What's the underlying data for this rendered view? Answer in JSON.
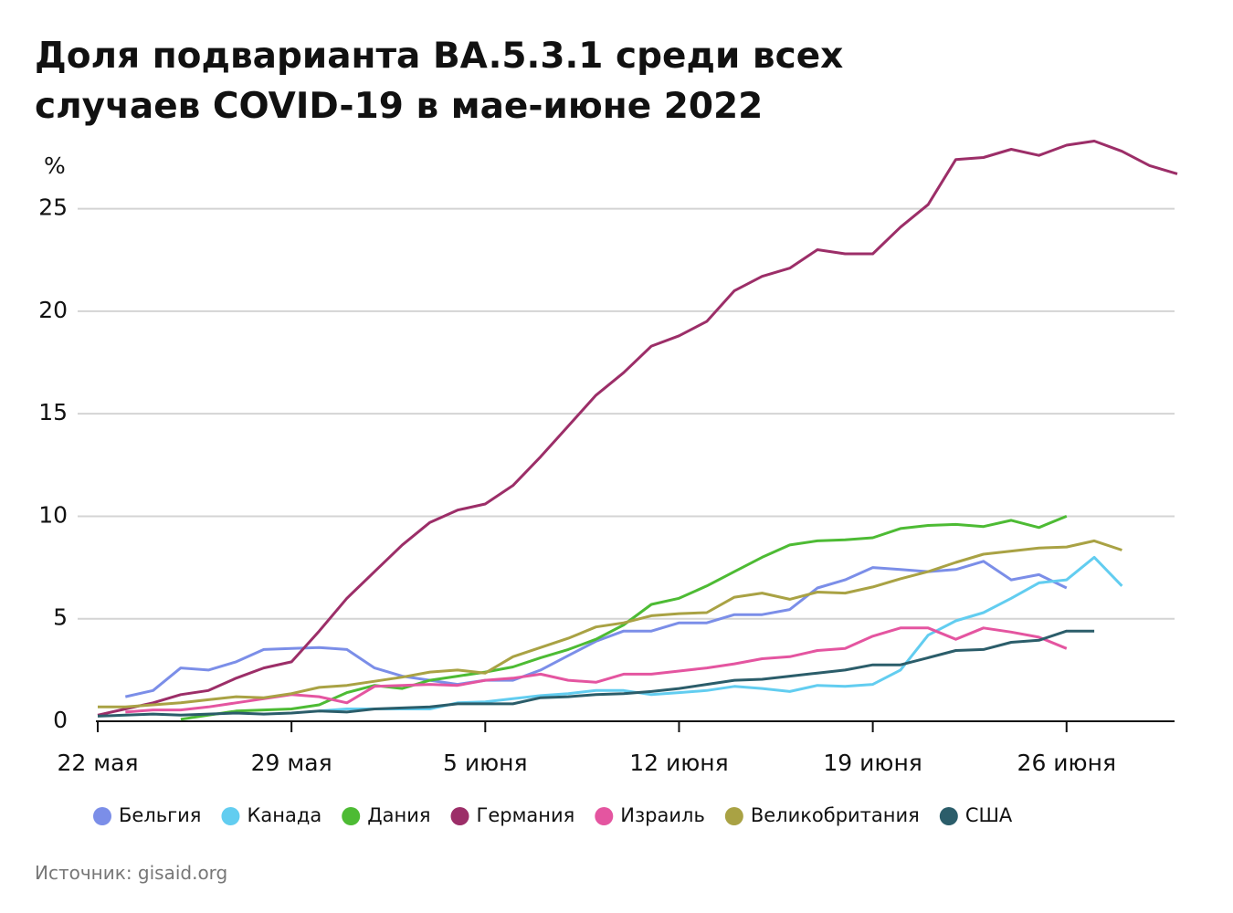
{
  "chart_data": {
    "type": "line",
    "title": "Доля подварианта BA.5.3.1 среди всех случаев COVID-19 в мае-июне 2022",
    "y_label": "%",
    "source": "Источник: gisaid.org",
    "x": [
      "05-22",
      "05-23",
      "05-24",
      "05-25",
      "05-26",
      "05-27",
      "05-28",
      "05-29",
      "05-30",
      "05-31",
      "06-01",
      "06-02",
      "06-03",
      "06-04",
      "06-05",
      "06-06",
      "06-07",
      "06-08",
      "06-09",
      "06-10",
      "06-11",
      "06-12",
      "06-13",
      "06-14",
      "06-15",
      "06-16",
      "06-17",
      "06-18",
      "06-19",
      "06-20",
      "06-21",
      "06-22",
      "06-23",
      "06-24",
      "06-25",
      "06-26",
      "06-27",
      "06-28",
      "06-29",
      "06-30"
    ],
    "xlim": [
      "05-22",
      "06-30"
    ],
    "xticks": [
      {
        "value": "05-22",
        "label": "22 мая"
      },
      {
        "value": "05-29",
        "label": "29 мая"
      },
      {
        "value": "06-05",
        "label": "5 июня"
      },
      {
        "value": "06-12",
        "label": "12 июня"
      },
      {
        "value": "06-19",
        "label": "19 июня"
      },
      {
        "value": "06-26",
        "label": "26 июня"
      }
    ],
    "ylim": [
      0,
      28.5
    ],
    "yticks": [
      0,
      5,
      10,
      15,
      20,
      25
    ],
    "grid": true,
    "series": [
      {
        "name": "Бельгия",
        "color": "#7b8ee8",
        "values": [
          null,
          1.2,
          1.5,
          2.6,
          2.5,
          2.9,
          3.5,
          3.55,
          3.6,
          3.5,
          2.6,
          2.2,
          2.0,
          1.8,
          2.0,
          2.0,
          2.5,
          3.2,
          3.9,
          4.4,
          4.4,
          4.8,
          4.8,
          5.2,
          5.2,
          5.45,
          6.5,
          6.9,
          7.5,
          7.4,
          7.3,
          7.4,
          7.8,
          6.9,
          7.15,
          6.5,
          null,
          null,
          null,
          null
        ]
      },
      {
        "name": "Канада",
        "color": "#62cdf0",
        "values": [
          null,
          null,
          null,
          null,
          null,
          null,
          null,
          null,
          0.5,
          0.6,
          0.6,
          0.6,
          0.6,
          0.9,
          0.95,
          1.1,
          1.25,
          1.35,
          1.5,
          1.5,
          1.3,
          1.4,
          1.5,
          1.7,
          1.6,
          1.45,
          1.75,
          1.7,
          1.8,
          2.5,
          4.2,
          4.9,
          5.3,
          6.0,
          6.75,
          6.9,
          8.0,
          6.6,
          null,
          null
        ]
      },
      {
        "name": "Дания",
        "color": "#4dbb34",
        "values": [
          null,
          null,
          null,
          0.1,
          0.3,
          0.5,
          0.55,
          0.6,
          0.8,
          1.4,
          1.75,
          1.6,
          2.0,
          2.2,
          2.4,
          2.65,
          3.1,
          3.5,
          4.0,
          4.7,
          5.7,
          6.0,
          6.6,
          7.3,
          8.0,
          8.6,
          8.8,
          8.85,
          8.95,
          9.4,
          9.55,
          9.6,
          9.5,
          9.8,
          9.45,
          10.0,
          null,
          null,
          null,
          null
        ]
      },
      {
        "name": "Германия",
        "color": "#9c2e68",
        "values": [
          0.3,
          0.6,
          0.9,
          1.3,
          1.5,
          2.1,
          2.6,
          2.9,
          4.4,
          6.0,
          7.3,
          8.6,
          9.7,
          10.3,
          10.6,
          11.5,
          12.9,
          14.4,
          15.9,
          17.0,
          18.3,
          18.8,
          19.5,
          21.0,
          21.7,
          22.1,
          23.0,
          22.8,
          22.8,
          24.1,
          25.2,
          27.4,
          27.5,
          27.9,
          27.6,
          28.1,
          28.3,
          27.8,
          27.1,
          26.7
        ]
      },
      {
        "name": "Израиль",
        "color": "#e455a0",
        "values": [
          null,
          0.45,
          0.55,
          0.55,
          0.7,
          0.9,
          1.1,
          1.3,
          1.2,
          0.9,
          1.7,
          1.75,
          1.8,
          1.75,
          2.0,
          2.1,
          2.3,
          2.0,
          1.9,
          2.3,
          2.3,
          2.45,
          2.6,
          2.8,
          3.05,
          3.15,
          3.45,
          3.55,
          4.15,
          4.55,
          4.55,
          4.0,
          4.55,
          4.35,
          4.1,
          3.55,
          null,
          null,
          null,
          null
        ]
      },
      {
        "name": "Великобритания",
        "color": "#a9a244",
        "values": [
          0.7,
          0.7,
          0.8,
          0.9,
          1.05,
          1.2,
          1.15,
          1.35,
          1.65,
          1.75,
          1.95,
          2.15,
          2.4,
          2.5,
          2.35,
          3.15,
          3.6,
          4.05,
          4.6,
          4.8,
          5.15,
          5.25,
          5.3,
          6.05,
          6.25,
          5.95,
          6.3,
          6.25,
          6.55,
          6.95,
          7.3,
          7.75,
          8.15,
          8.3,
          8.45,
          8.5,
          8.8,
          8.35,
          null,
          null
        ]
      },
      {
        "name": "США",
        "color": "#2b5d6a",
        "values": [
          0.25,
          0.3,
          0.35,
          0.3,
          0.35,
          0.4,
          0.35,
          0.4,
          0.5,
          0.45,
          0.6,
          0.65,
          0.7,
          0.85,
          0.85,
          0.85,
          1.15,
          1.2,
          1.3,
          1.35,
          1.45,
          1.6,
          1.8,
          2.0,
          2.05,
          2.2,
          2.35,
          2.5,
          2.75,
          2.75,
          3.1,
          3.45,
          3.5,
          3.85,
          3.95,
          4.4,
          4.4,
          null,
          null,
          null
        ]
      }
    ]
  }
}
